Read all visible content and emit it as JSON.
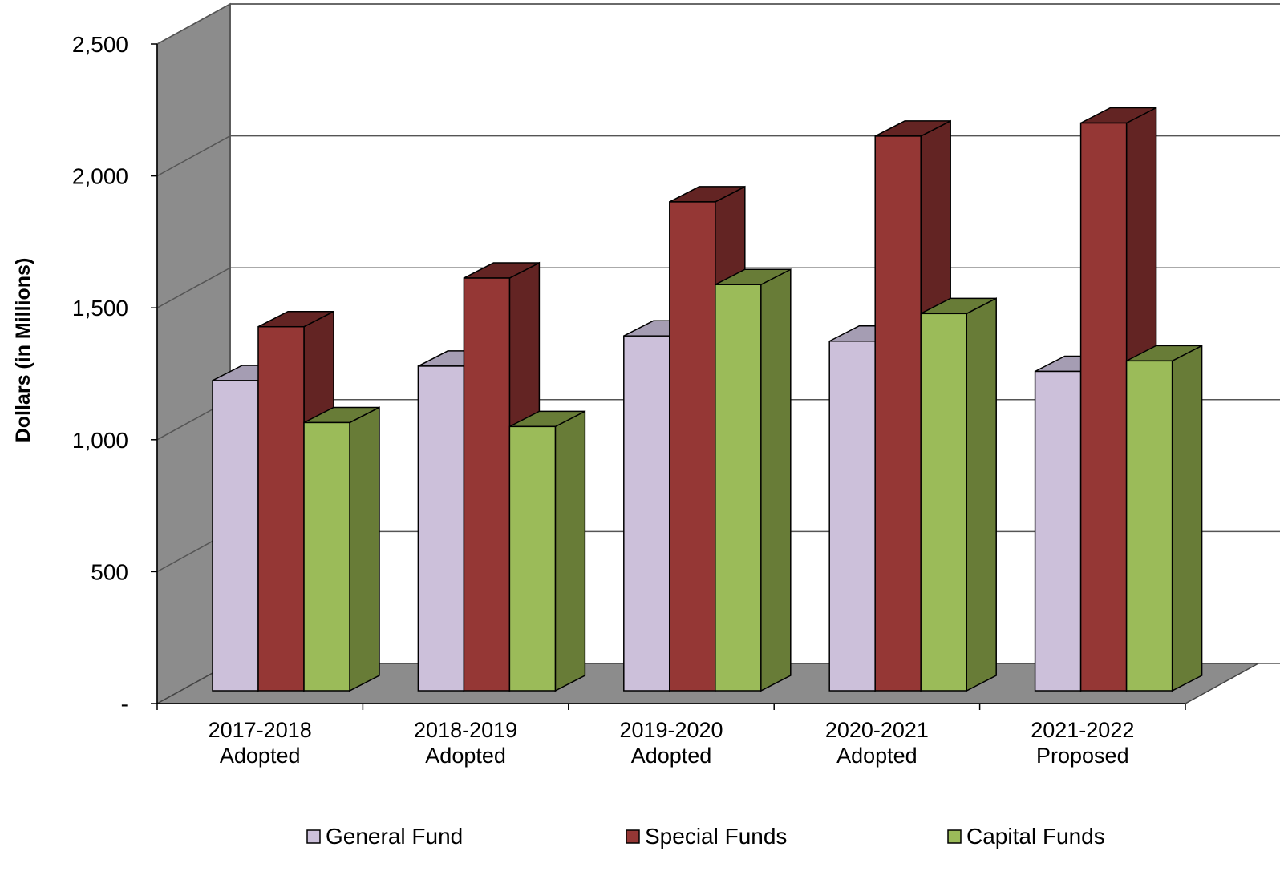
{
  "chart_data": {
    "type": "bar",
    "style": "3d-clustered-column",
    "title": "",
    "xlabel": "",
    "ylabel": "Dollars (in Millions)",
    "ylim": [
      0,
      2500
    ],
    "yticks": [
      {
        "value": 0,
        "label": "-"
      },
      {
        "value": 500,
        "label": "500"
      },
      {
        "value": 1000,
        "label": "1,000"
      },
      {
        "value": 1500,
        "label": "1,500"
      },
      {
        "value": 2000,
        "label": "2,000"
      },
      {
        "value": 2500,
        "label": "2,500"
      }
    ],
    "categories": [
      [
        "2017-2018",
        "Adopted"
      ],
      [
        "2018-2019",
        "Adopted"
      ],
      [
        "2019-2020",
        "Adopted"
      ],
      [
        "2020-2021",
        "Adopted"
      ],
      [
        "2021-2022",
        "Proposed"
      ]
    ],
    "grid": true,
    "legend_position": "bottom",
    "series": [
      {
        "name": "General Fund",
        "color": "#CCC0DA",
        "side": "#A59DB3",
        "values": [
          1180,
          1235,
          1350,
          1330,
          1215
        ]
      },
      {
        "name": "Special Funds",
        "color": "#953735",
        "side": "#632423",
        "values": [
          1385,
          1570,
          1860,
          2110,
          2160
        ]
      },
      {
        "name": "Capital Funds",
        "color": "#9BBB59",
        "side": "#687C37",
        "values": [
          1020,
          1005,
          1545,
          1435,
          1255
        ]
      }
    ]
  }
}
